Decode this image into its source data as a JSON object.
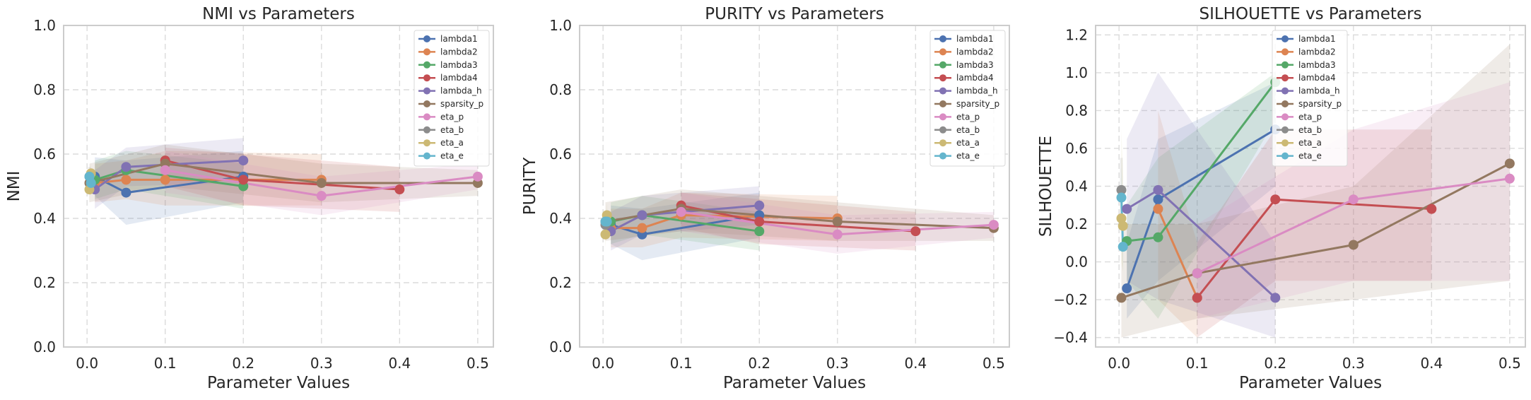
{
  "chart_data": [
    {
      "type": "line",
      "title": "NMI vs Parameters",
      "xlabel": "Parameter Values",
      "ylabel": "NMI",
      "xlim": [
        -0.03,
        0.52
      ],
      "ylim": [
        0.0,
        1.0
      ],
      "xticks": [
        "0.0",
        "0.1",
        "0.2",
        "0.3",
        "0.4",
        "0.5"
      ],
      "yticks": [
        "0.0",
        "0.2",
        "0.4",
        "0.6",
        "0.8",
        "1.0"
      ],
      "grid": true,
      "legend_position": "top-right",
      "series": [
        {
          "name": "lambda1",
          "color": "#4c72b0",
          "x": [
            0.01,
            0.05,
            0.2
          ],
          "y": [
            0.53,
            0.48,
            0.53
          ],
          "lo": [
            0.47,
            0.38,
            0.45
          ],
          "hi": [
            0.59,
            0.58,
            0.61
          ]
        },
        {
          "name": "lambda2",
          "color": "#dd8452",
          "x": [
            0.01,
            0.05,
            0.1,
            0.3
          ],
          "y": [
            0.51,
            0.52,
            0.52,
            0.52
          ],
          "lo": [
            0.45,
            0.46,
            0.44,
            0.44
          ],
          "hi": [
            0.57,
            0.58,
            0.61,
            0.6
          ]
        },
        {
          "name": "lambda3",
          "color": "#55a868",
          "x": [
            0.01,
            0.05,
            0.2
          ],
          "y": [
            0.52,
            0.55,
            0.5
          ],
          "lo": [
            0.46,
            0.49,
            0.43
          ],
          "hi": [
            0.58,
            0.61,
            0.57
          ]
        },
        {
          "name": "lambda4",
          "color": "#c44e52",
          "x": [
            0.1,
            0.2,
            0.4
          ],
          "y": [
            0.58,
            0.52,
            0.49
          ],
          "lo": [
            0.5,
            0.44,
            0.42
          ],
          "hi": [
            0.62,
            0.6,
            0.56
          ]
        },
        {
          "name": "lambda_h",
          "color": "#8172b3",
          "x": [
            0.01,
            0.05,
            0.2
          ],
          "y": [
            0.49,
            0.56,
            0.58
          ],
          "lo": [
            0.43,
            0.5,
            0.51
          ],
          "hi": [
            0.55,
            0.62,
            0.65
          ]
        },
        {
          "name": "sparsity_p",
          "color": "#937860",
          "x": [
            0.003,
            0.1,
            0.3,
            0.5
          ],
          "y": [
            0.51,
            0.57,
            0.51,
            0.51
          ],
          "lo": [
            0.45,
            0.5,
            0.45,
            0.47
          ],
          "hi": [
            0.57,
            0.63,
            0.57,
            0.55
          ]
        },
        {
          "name": "eta_p",
          "color": "#da8bc3",
          "x": [
            0.1,
            0.3,
            0.5
          ],
          "y": [
            0.55,
            0.47,
            0.53
          ],
          "lo": [
            0.48,
            0.41,
            0.49
          ],
          "hi": [
            0.61,
            0.53,
            0.57
          ]
        },
        {
          "name": "eta_b",
          "color": "#8c8c8c",
          "x": [
            0.003
          ],
          "y": [
            0.53
          ],
          "lo": [
            0.5
          ],
          "hi": [
            0.56
          ]
        },
        {
          "name": "eta_a",
          "color": "#ccb974",
          "x": [
            0.003,
            0.005
          ],
          "y": [
            0.49,
            0.54
          ],
          "lo": [
            0.45,
            0.5
          ],
          "hi": [
            0.53,
            0.58
          ]
        },
        {
          "name": "eta_e",
          "color": "#64b5cd",
          "x": [
            0.003,
            0.005
          ],
          "y": [
            0.53,
            0.51
          ],
          "lo": [
            0.5,
            0.48
          ],
          "hi": [
            0.56,
            0.54
          ]
        }
      ]
    },
    {
      "type": "line",
      "title": "PURITY vs Parameters",
      "xlabel": "Parameter Values",
      "ylabel": "PURITY",
      "xlim": [
        -0.03,
        0.52
      ],
      "ylim": [
        0.0,
        1.0
      ],
      "xticks": [
        "0.0",
        "0.1",
        "0.2",
        "0.3",
        "0.4",
        "0.5"
      ],
      "yticks": [
        "0.0",
        "0.2",
        "0.4",
        "0.6",
        "0.8",
        "1.0"
      ],
      "grid": true,
      "legend_position": "top-right",
      "series": [
        {
          "name": "lambda1",
          "color": "#4c72b0",
          "x": [
            0.01,
            0.05,
            0.2
          ],
          "y": [
            0.38,
            0.35,
            0.41
          ],
          "lo": [
            0.32,
            0.27,
            0.34
          ],
          "hi": [
            0.44,
            0.43,
            0.48
          ]
        },
        {
          "name": "lambda2",
          "color": "#dd8452",
          "x": [
            0.01,
            0.05,
            0.1,
            0.3
          ],
          "y": [
            0.37,
            0.37,
            0.41,
            0.4
          ],
          "lo": [
            0.31,
            0.31,
            0.34,
            0.33
          ],
          "hi": [
            0.43,
            0.43,
            0.48,
            0.47
          ]
        },
        {
          "name": "lambda3",
          "color": "#55a868",
          "x": [
            0.01,
            0.05,
            0.2
          ],
          "y": [
            0.39,
            0.41,
            0.36
          ],
          "lo": [
            0.32,
            0.35,
            0.3
          ],
          "hi": [
            0.45,
            0.47,
            0.42
          ]
        },
        {
          "name": "lambda4",
          "color": "#c44e52",
          "x": [
            0.1,
            0.2,
            0.4
          ],
          "y": [
            0.44,
            0.39,
            0.36
          ],
          "lo": [
            0.37,
            0.32,
            0.3
          ],
          "hi": [
            0.48,
            0.46,
            0.42
          ]
        },
        {
          "name": "lambda_h",
          "color": "#8172b3",
          "x": [
            0.01,
            0.05,
            0.2
          ],
          "y": [
            0.36,
            0.41,
            0.44
          ],
          "lo": [
            0.3,
            0.35,
            0.38
          ],
          "hi": [
            0.42,
            0.47,
            0.5
          ]
        },
        {
          "name": "sparsity_p",
          "color": "#937860",
          "x": [
            0.003,
            0.1,
            0.3,
            0.5
          ],
          "y": [
            0.39,
            0.43,
            0.39,
            0.37
          ],
          "lo": [
            0.33,
            0.36,
            0.33,
            0.33
          ],
          "hi": [
            0.45,
            0.49,
            0.45,
            0.41
          ]
        },
        {
          "name": "eta_p",
          "color": "#da8bc3",
          "x": [
            0.1,
            0.3,
            0.5
          ],
          "y": [
            0.42,
            0.35,
            0.38
          ],
          "lo": [
            0.36,
            0.29,
            0.34
          ],
          "hi": [
            0.48,
            0.41,
            0.42
          ]
        },
        {
          "name": "eta_b",
          "color": "#8c8c8c",
          "x": [
            0.003
          ],
          "y": [
            0.38
          ],
          "lo": [
            0.35
          ],
          "hi": [
            0.41
          ]
        },
        {
          "name": "eta_a",
          "color": "#ccb974",
          "x": [
            0.003,
            0.005
          ],
          "y": [
            0.35,
            0.41
          ],
          "lo": [
            0.31,
            0.37
          ],
          "hi": [
            0.39,
            0.45
          ]
        },
        {
          "name": "eta_e",
          "color": "#64b5cd",
          "x": [
            0.003,
            0.005
          ],
          "y": [
            0.39,
            0.39
          ],
          "lo": [
            0.36,
            0.36
          ],
          "hi": [
            0.42,
            0.42
          ]
        }
      ]
    },
    {
      "type": "line",
      "title": "SILHOUETTE vs Parameters",
      "xlabel": "Parameter Values",
      "ylabel": "SILHOUETTE",
      "xlim": [
        -0.03,
        0.52
      ],
      "ylim": [
        -0.45,
        1.25
      ],
      "xticks": [
        "0.0",
        "0.1",
        "0.2",
        "0.3",
        "0.4",
        "0.5"
      ],
      "yticks": [
        "−0.4",
        "−0.2",
        "0.0",
        "0.2",
        "0.4",
        "0.6",
        "0.8",
        "1.0",
        "1.2"
      ],
      "grid": true,
      "legend_position": "top-center",
      "series": [
        {
          "name": "lambda1",
          "color": "#4c72b0",
          "x": [
            0.01,
            0.05,
            0.2
          ],
          "y": [
            -0.14,
            0.33,
            0.7
          ],
          "lo": [
            -0.3,
            -0.1,
            0.4
          ],
          "hi": [
            0.1,
            0.65,
            0.95
          ]
        },
        {
          "name": "lambda2",
          "color": "#dd8452",
          "x": [
            0.05,
            0.1
          ],
          "y": [
            0.28,
            -0.19
          ],
          "lo": [
            -0.2,
            -0.4
          ],
          "hi": [
            0.8,
            0.1
          ]
        },
        {
          "name": "lambda3",
          "color": "#55a868",
          "x": [
            0.01,
            0.05,
            0.2
          ],
          "y": [
            0.11,
            0.13,
            0.95
          ],
          "lo": [
            -0.1,
            -0.3,
            0.75
          ],
          "hi": [
            0.3,
            0.55,
            1.0
          ]
        },
        {
          "name": "lambda4",
          "color": "#c44e52",
          "x": [
            0.1,
            0.2,
            0.4
          ],
          "y": [
            -0.19,
            0.33,
            0.28
          ],
          "lo": [
            -0.4,
            -0.1,
            -0.1
          ],
          "hi": [
            0.1,
            0.7,
            0.7
          ]
        },
        {
          "name": "lambda_h",
          "color": "#8172b3",
          "x": [
            0.01,
            0.05,
            0.2
          ],
          "y": [
            0.28,
            0.38,
            -0.19
          ],
          "lo": [
            -0.1,
            -0.2,
            -0.4
          ],
          "hi": [
            0.65,
            1.0,
            0.1
          ]
        },
        {
          "name": "sparsity_p",
          "color": "#937860",
          "x": [
            0.003,
            0.1,
            0.3,
            0.5
          ],
          "y": [
            -0.19,
            -0.06,
            0.09,
            0.52
          ],
          "lo": [
            -0.4,
            -0.3,
            -0.2,
            -0.1
          ],
          "hi": [
            0.2,
            0.2,
            0.4,
            1.15
          ]
        },
        {
          "name": "eta_p",
          "color": "#da8bc3",
          "x": [
            0.1,
            0.3,
            0.5
          ],
          "y": [
            -0.06,
            0.33,
            0.44
          ],
          "lo": [
            -0.3,
            -0.1,
            -0.1
          ],
          "hi": [
            0.2,
            0.7,
            0.95
          ]
        },
        {
          "name": "eta_b",
          "color": "#8c8c8c",
          "x": [
            0.003
          ],
          "y": [
            0.38
          ],
          "lo": [
            0.2
          ],
          "hi": [
            0.55
          ]
        },
        {
          "name": "eta_a",
          "color": "#ccb974",
          "x": [
            0.003,
            0.005
          ],
          "y": [
            0.23,
            0.19
          ],
          "lo": [
            0.0,
            -0.05
          ],
          "hi": [
            0.7,
            0.45
          ]
        },
        {
          "name": "eta_e",
          "color": "#64b5cd",
          "x": [
            0.003,
            0.005
          ],
          "y": [
            0.34,
            0.08
          ],
          "lo": [
            0.2,
            -0.05
          ],
          "hi": [
            0.5,
            0.25
          ]
        }
      ]
    }
  ]
}
